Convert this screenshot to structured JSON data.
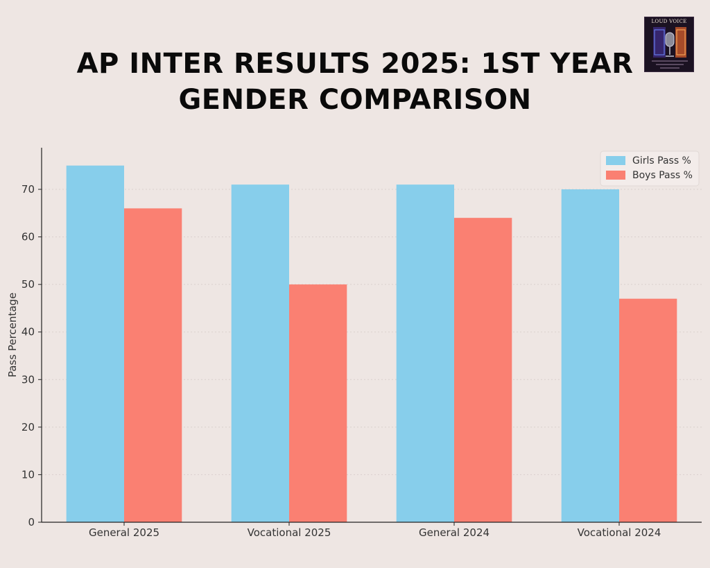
{
  "logo": {
    "text": "LOUD VOICE"
  },
  "chart_data": {
    "type": "bar",
    "title": [
      "AP INTER RESULTS 2025: 1ST YEAR",
      "GENDER COMPARISON"
    ],
    "xlabel": "",
    "ylabel": "Pass Percentage",
    "categories": [
      "General 2025",
      "Vocational 2025",
      "General 2024",
      "Vocational 2024"
    ],
    "series": [
      {
        "name": "Girls Pass %",
        "values": [
          75,
          71,
          71,
          70
        ],
        "color": "#87ceeb"
      },
      {
        "name": "Boys Pass %",
        "values": [
          66,
          50,
          64,
          47
        ],
        "color": "#fa8072"
      }
    ],
    "yticks": [
      0,
      10,
      20,
      30,
      40,
      50,
      60,
      70
    ],
    "ylim": [
      0,
      78.75
    ],
    "grid": true,
    "legend": "top-right"
  }
}
